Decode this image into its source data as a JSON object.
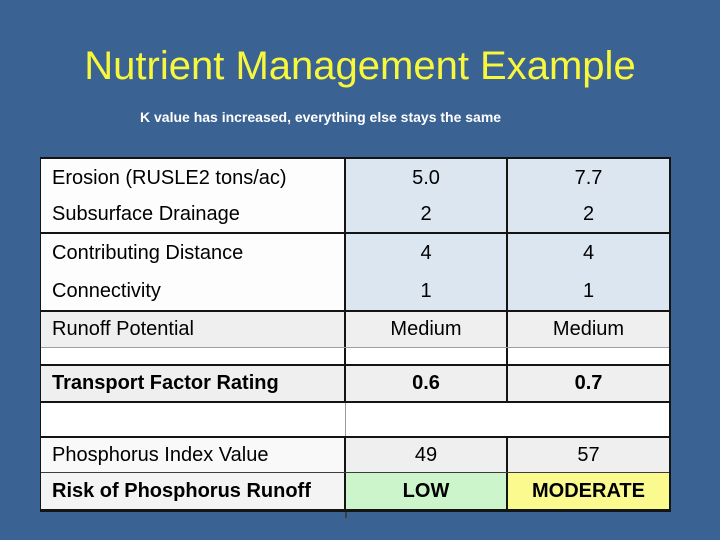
{
  "slide": {
    "title": "Nutrient Management Example",
    "subtitle": "K value has increased, everything else stays the same",
    "colors": {
      "background": "#3A6293",
      "title": "#F7F73C",
      "subtitle": "#FFFFFF"
    }
  },
  "table": {
    "columns": [
      "label",
      "value_1",
      "value_2"
    ],
    "colors": {
      "value_cell_blue": "#DCE6F1",
      "row_gray": "#EFEFEF",
      "low_green": "#CCF5CC",
      "moderate_yellow": "#FAFA8E",
      "border": "#141414"
    },
    "rows": [
      {
        "label": "Erosion (RUSLE2 tons/ac)",
        "value_1": "5.0",
        "value_2": "7.7"
      },
      {
        "label": "Subsurface Drainage",
        "value_1": "2",
        "value_2": "2"
      },
      {
        "label": "Contributing Distance",
        "value_1": "4",
        "value_2": "4"
      },
      {
        "label": "Connectivity",
        "value_1": "1",
        "value_2": "1"
      },
      {
        "label": "Runoff Potential",
        "value_1": "Medium",
        "value_2": "Medium"
      },
      {
        "label": "Transport Factor Rating",
        "value_1": "0.6",
        "value_2": "0.7"
      },
      {
        "label": "",
        "value_1": "",
        "value_2": ""
      },
      {
        "label": "Phosphorus Index Value",
        "value_1": "49",
        "value_2": "57"
      },
      {
        "label": "Risk of Phosphorus Runoff",
        "value_1": "LOW",
        "value_2": "MODERATE"
      }
    ]
  }
}
